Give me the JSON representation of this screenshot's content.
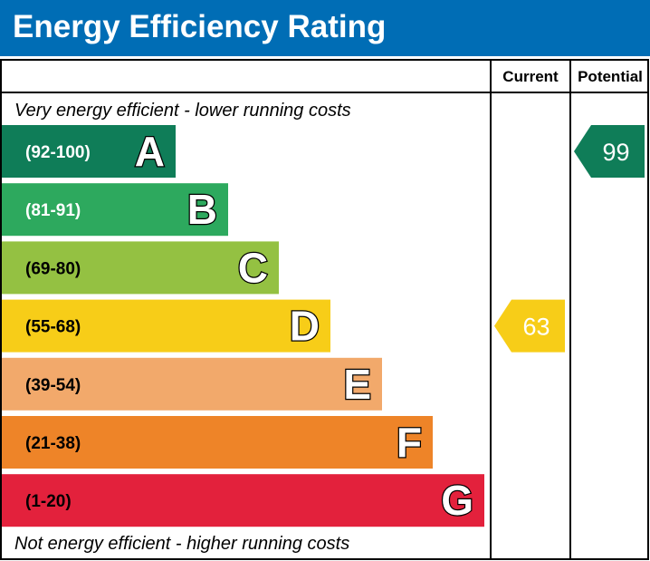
{
  "title": "Energy Efficiency Rating",
  "columns": {
    "current": "Current",
    "potential": "Potential"
  },
  "captions": {
    "top": "Very energy efficient - lower running costs",
    "bottom": "Not energy efficient - higher running costs"
  },
  "chart_data": {
    "type": "bar",
    "title": "Energy Efficiency Rating",
    "bands": [
      {
        "letter": "A",
        "range": "(92-100)",
        "color": "#0f7d58",
        "text_color": "#ffffff"
      },
      {
        "letter": "B",
        "range": "(81-91)",
        "color": "#2da95e",
        "text_color": "#ffffff"
      },
      {
        "letter": "C",
        "range": "(69-80)",
        "color": "#94c142",
        "text_color": "#000000"
      },
      {
        "letter": "D",
        "range": "(55-68)",
        "color": "#f7cd18",
        "text_color": "#000000"
      },
      {
        "letter": "E",
        "range": "(39-54)",
        "color": "#f2a96b",
        "text_color": "#000000"
      },
      {
        "letter": "F",
        "range": "(21-38)",
        "color": "#ee8428",
        "text_color": "#000000"
      },
      {
        "letter": "G",
        "range": "(1-20)",
        "color": "#e3213c",
        "text_color": "#000000"
      }
    ],
    "current": {
      "value": 63,
      "band": "D",
      "color": "#f7cd18"
    },
    "potential": {
      "value": 99,
      "band": "A",
      "color": "#0f7d58"
    }
  }
}
